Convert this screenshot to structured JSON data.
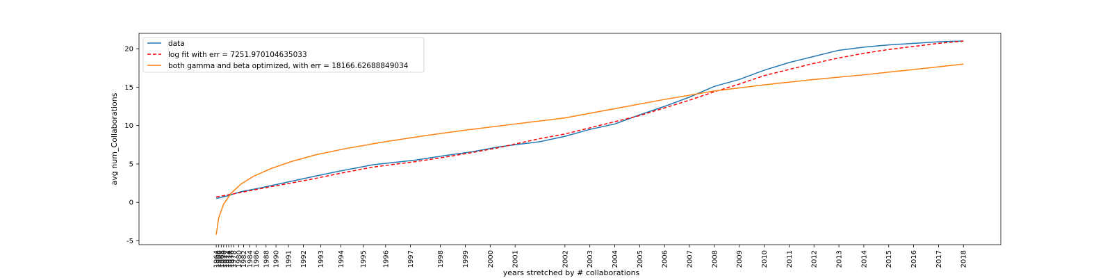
{
  "chart_data": {
    "type": "line",
    "title": "",
    "xlabel": "years stretched by # collaborations",
    "ylabel": "avg num_Collaborations",
    "ylim": [
      -5.5,
      22
    ],
    "xlim": [
      1984.9,
      2019.5
    ],
    "yticks": [
      -5,
      0,
      5,
      10,
      15,
      20
    ],
    "ytick_labels": [
      "-5",
      "0",
      "5",
      "10",
      "15",
      "20"
    ],
    "xticks": [
      1988.0,
      1988.15,
      1988.3,
      1988.45,
      1988.6,
      1988.75,
      1988.9,
      1989.05,
      1989.25,
      1989.45,
      1989.7,
      1989.95,
      1990.25,
      1990.6,
      1991.0,
      1991.4,
      1991.9,
      1992.4,
      1993.0,
      1993.6,
      1994.3,
      1995.0,
      1995.7,
      1996.4,
      1997.2,
      1998.3,
      1999.2,
      2000.0,
      2001.0,
      2002.0,
      2003.0,
      2004.0,
      2005.0,
      2006.0,
      2007.0,
      2008.0,
      2009.0,
      2010.0,
      2011.0,
      2012.0,
      2013.0,
      2014.0,
      2015.0,
      2016.0,
      2017.0,
      2018.0
    ],
    "xtick_labels": [
      "1964",
      "1966",
      "1968",
      "1970",
      "1972",
      "1974",
      "1976",
      "1978",
      "1980",
      "1982",
      "1984",
      "1986",
      "1988",
      "1990",
      "1991",
      "1992",
      "1993",
      "1994",
      "1995",
      "1996",
      "1997",
      "1998",
      "1999",
      "2000",
      "2001",
      "2002",
      "2003",
      "2004",
      "2005",
      "2006",
      "2007",
      "2008",
      "2009",
      "2010",
      "2011",
      "2012",
      "2013",
      "2014",
      "2015",
      "2016",
      "2017",
      "2018"
    ],
    "xtick_positions": [
      1988.0,
      1988.1,
      1988.2,
      1988.3,
      1988.4,
      1988.5,
      1988.6,
      1988.7,
      1988.9,
      1989.1,
      1989.35,
      1989.6,
      1990.0,
      1990.4,
      1990.9,
      1991.5,
      1992.2,
      1993.0,
      1993.9,
      1994.8,
      1995.8,
      1997.0,
      1998.0,
      1999.0,
      2000.0,
      2002.0,
      2003.0,
      2004.0,
      2005.0,
      2006.0,
      2007.0,
      2008.0,
      2009.0,
      2010.0,
      2011.0,
      2012.0,
      2013.0,
      2014.0,
      2015.0,
      2016.0,
      2017.0,
      2018.0
    ],
    "grid": false,
    "legend_position": "top-left",
    "series": [
      {
        "name": "data",
        "color": "#1f77b4",
        "dash": "solid",
        "x": [
          1988.0,
          1989.0,
          1990.0,
          1991.5,
          1993.0,
          1995.0,
          1997.0,
          1999.0,
          2000.0,
          2001.0,
          2002.0,
          2003.0,
          2004.0,
          2005.0,
          2006.0,
          2007.0,
          2008.0,
          2009.0,
          2010.0,
          2011.0,
          2012.0,
          2013.0,
          2014.0,
          2015.0,
          2016.0,
          2017.0,
          2018.0
        ],
        "y": [
          0.5,
          0.9,
          1.4,
          2.1,
          2.8,
          3.6,
          4.4,
          5.3,
          6.0,
          6.9,
          7.6,
          8.4,
          9.5,
          10.5,
          11.6,
          12.7,
          13.9,
          15.1,
          16.2,
          17.2,
          18.2,
          18.9,
          19.3,
          19.8,
          20.3,
          20.8,
          21.0
        ],
        "xr": [
          1988.0,
          1988.5,
          1989.0,
          1989.8,
          1990.8,
          1991.8,
          1993.0,
          1994.3,
          1996.0,
          1997.2,
          1998.3,
          1999.3,
          2000.0,
          2001.0,
          2002.0,
          2003.0,
          2004.0,
          2005.0,
          2006.0,
          2007.0,
          2008.0,
          2009.0,
          2010.0,
          2011.0,
          2012.0,
          2013.0,
          2014.0,
          2015.0,
          2016.0,
          2017.0,
          2018.0
        ]
      },
      {
        "name": "log fit with err = 7251.970104635033",
        "color": "#ff0000",
        "dash": "dashed"
      },
      {
        "name": "both gamma and beta optimized, with err = 18166.62688849034",
        "color": "#ff7f0e",
        "dash": "solid"
      }
    ]
  }
}
